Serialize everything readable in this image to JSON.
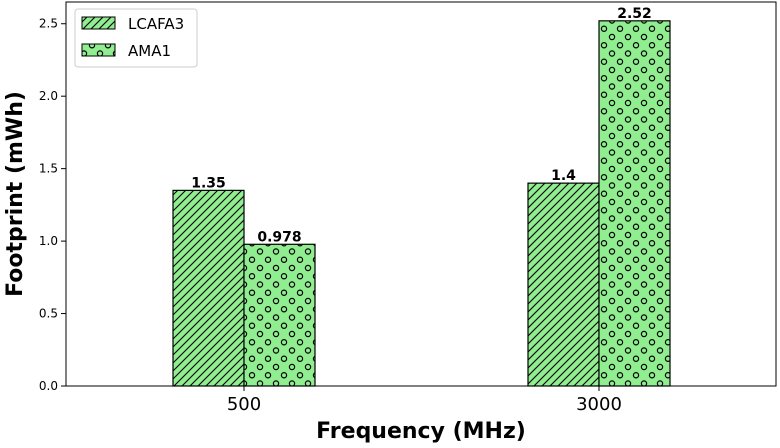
{
  "chart_data": {
    "type": "bar",
    "categories": [
      "500",
      "3000"
    ],
    "series": [
      {
        "name": "LCAFA3",
        "values": [
          1.35,
          1.4
        ],
        "labels": [
          "1.35",
          "1.4"
        ],
        "pattern": "diagonal-hatch"
      },
      {
        "name": "AMA1",
        "values": [
          0.978,
          2.52
        ],
        "labels": [
          "0.978",
          "2.52"
        ],
        "pattern": "circle-dots"
      }
    ],
    "xlabel": "Frequency (MHz)",
    "ylabel": "Footprint (mWh)",
    "ylim": [
      0,
      2.65
    ],
    "yticks": [
      0.0,
      0.5,
      1.0,
      1.5,
      2.0,
      2.5
    ],
    "ytick_labels": [
      "0.0",
      "0.5",
      "1.0",
      "1.5",
      "2.0",
      "2.5"
    ],
    "grid": false,
    "legend_position": "top-left",
    "bar_color": "#90ee90",
    "edge_color": "#000000"
  }
}
